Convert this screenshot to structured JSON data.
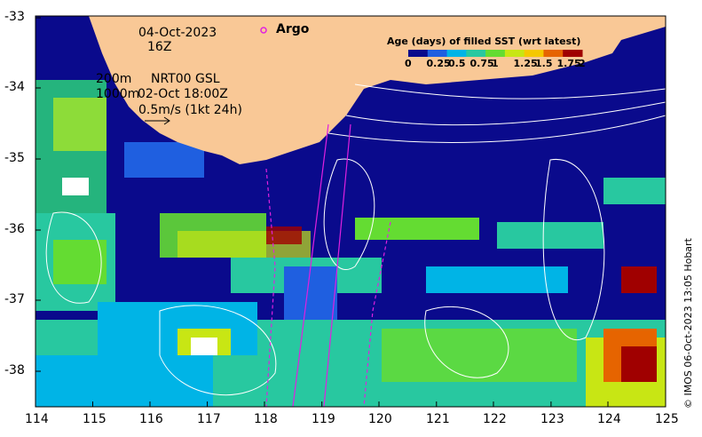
{
  "map": {
    "date": "04-Oct-2023",
    "hour": "16Z",
    "argo_label": "Argo",
    "argo_color": "#e020e0",
    "depth_200": "200m",
    "depth_1000": "1000m",
    "currents_product": "NRT00 GSL",
    "currents_time": "02-Oct 18:00Z",
    "scale_arrow_label": "0.5m/s (1kt 24h)",
    "land_color": "#f9c896",
    "credit": "© IMOS 06-Oct-2023 13:05 Hobart",
    "lon_ticks": [
      "114",
      "115",
      "116",
      "117",
      "118",
      "119",
      "120",
      "121",
      "122",
      "123",
      "124",
      "125"
    ],
    "lat_ticks": [
      "-33",
      "-34",
      "-35",
      "-36",
      "-37",
      "-38"
    ]
  },
  "legend": {
    "title": "Age (days) of filled SST (wrt latest)",
    "ticks": [
      "0",
      "0.25",
      "0.5",
      "0.75",
      "1",
      "1.25",
      "1.5",
      "1.75",
      "2"
    ],
    "colors": [
      "#0a0a8c",
      "#1f5fe0",
      "#00b4e6",
      "#28c8a0",
      "#64dc32",
      "#c8e614",
      "#f5c800",
      "#e66400",
      "#a00000"
    ]
  }
}
